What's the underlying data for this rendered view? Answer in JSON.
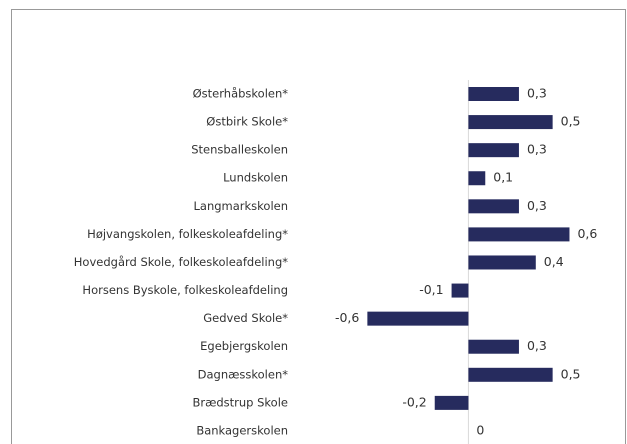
{
  "chart_data": {
    "type": "bar",
    "orientation": "horizontal",
    "categories": [
      "Østerhåbskolen*",
      "Østbirk Skole*",
      "Stensballeskolen",
      "Lundskolen",
      "Langmarkskolen",
      "Højvangskolen, folkeskoleafdeling*",
      "Hovedgård Skole, folkeskoleafdeling*",
      "Horsens Byskole, folkeskoleafdeling",
      "Gedved Skole*",
      "Egebjergskolen",
      "Dagnæsskolen*",
      "Brædstrup Skole",
      "Bankagerskolen"
    ],
    "values": [
      0.3,
      0.5,
      0.3,
      0.1,
      0.3,
      0.6,
      0.4,
      -0.1,
      -0.6,
      0.3,
      0.5,
      -0.2,
      0
    ],
    "value_labels": [
      "0,3",
      "0,5",
      "0,3",
      "0,1",
      "0,3",
      "0,6",
      "0,4",
      "-0,1",
      "-0,6",
      "0,3",
      "0,5",
      "-0,2",
      "0"
    ],
    "color": "#262b5e",
    "xlim": [
      -1,
      0.9
    ]
  }
}
